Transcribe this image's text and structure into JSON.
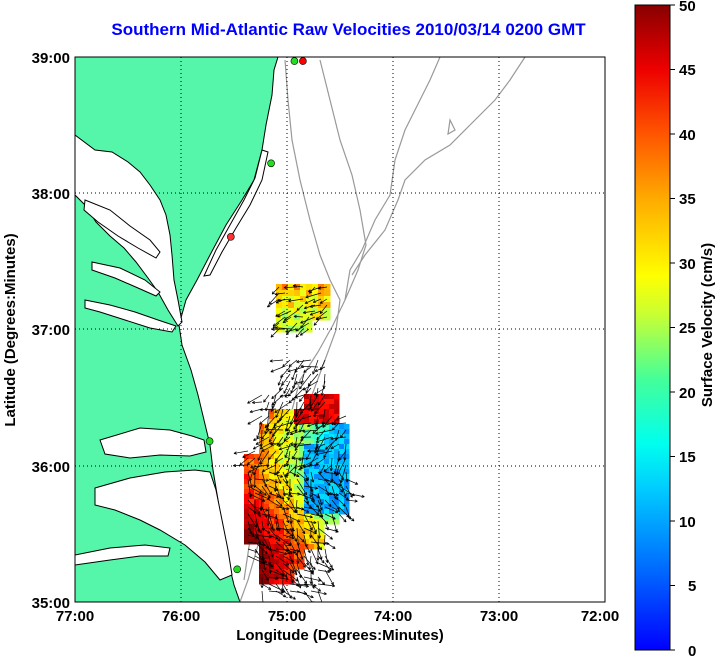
{
  "title": "Southern Mid-Atlantic Raw Velocities 2010/03/14 0200 GMT",
  "map": {
    "xlabel": "Longitude (Degrees:Minutes)",
    "ylabel": "Latitude (Degrees:Minutes)",
    "x_ticks": [
      "77:00",
      "76:00",
      "75:00",
      "74:00",
      "73:00",
      "72:00"
    ],
    "y_ticks": [
      "39:00",
      "38:00",
      "37:00",
      "36:00",
      "35:00"
    ],
    "x_range": [
      -77,
      -72
    ],
    "y_range": [
      35,
      39
    ],
    "grid": "dotted",
    "land_color": "#55f5aa",
    "water_color": "#ffffff",
    "bathymetry_color": "#999999"
  },
  "colorbar": {
    "label": "Surface Velocity (cm/s)",
    "ticks": [
      "50",
      "45",
      "40",
      "35",
      "30",
      "25",
      "20",
      "15",
      "10",
      "5",
      "0"
    ],
    "min": 0,
    "max": 50,
    "colormap": "jet"
  },
  "stations": [
    {
      "lon": -74.85,
      "lat": 38.97,
      "color": "#ff0000"
    },
    {
      "lon": -74.93,
      "lat": 38.97,
      "color": "#22dd22"
    },
    {
      "lon": -75.15,
      "lat": 38.22,
      "color": "#22dd22"
    },
    {
      "lon": -75.53,
      "lat": 37.68,
      "color": "#ff3333"
    },
    {
      "lon": -75.73,
      "lat": 36.18,
      "color": "#22dd22"
    },
    {
      "lon": -75.47,
      "lat": 35.24,
      "color": "#22dd22"
    }
  ]
}
